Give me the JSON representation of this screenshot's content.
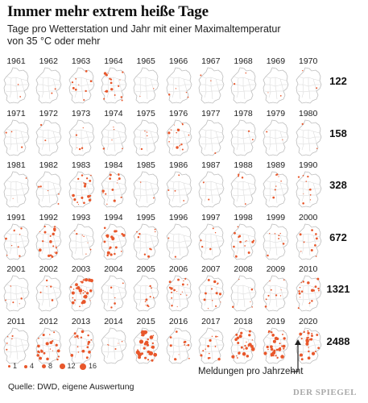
{
  "title": "Immer mehr extrem heiße Tage",
  "subtitle": "Tage pro Wetterstation und Jahr mit einer Maximaltemperatur von 35 °C oder mehr",
  "source": "Quelle: DWD, eigene Auswertung",
  "brand": "DER SPIEGEL",
  "colors": {
    "dot": "#e8572b",
    "map_fill": "#ffffff",
    "map_border": "#bdbdbd"
  },
  "legend": {
    "items": [
      "1",
      "4",
      "8",
      "12",
      "16"
    ]
  },
  "chart_data": {
    "type": "small-multiples-map",
    "annotation": "Meldungen pro Jahrzehnt",
    "legend_values": [
      1,
      4,
      8,
      12,
      16
    ],
    "decades": [
      {
        "years": [
          "1961",
          "1962",
          "1963",
          "1964",
          "1965",
          "1966",
          "1967",
          "1968",
          "1969",
          "1970"
        ],
        "reports": "122",
        "intensity": [
          0.05,
          0.05,
          0.2,
          0.35,
          0.04,
          0.08,
          0.05,
          0.05,
          0.04,
          0.05
        ]
      },
      {
        "years": [
          "1971",
          "1972",
          "1973",
          "1974",
          "1975",
          "1976",
          "1977",
          "1978",
          "1979",
          "1980"
        ],
        "reports": "158",
        "intensity": [
          0.06,
          0.04,
          0.12,
          0.1,
          0.08,
          0.35,
          0.03,
          0.04,
          0.04,
          0.04
        ]
      },
      {
        "years": [
          "1981",
          "1982",
          "1983",
          "1984",
          "1985",
          "1986",
          "1987",
          "1988",
          "1989",
          "1990"
        ],
        "reports": "328",
        "intensity": [
          0.05,
          0.12,
          0.38,
          0.3,
          0.05,
          0.08,
          0.04,
          0.08,
          0.15,
          0.22
        ]
      },
      {
        "years": [
          "1991",
          "1992",
          "1993",
          "1994",
          "1995",
          "1996",
          "1997",
          "1998",
          "1999",
          "2000"
        ],
        "reports": "672",
        "intensity": [
          0.2,
          0.45,
          0.15,
          0.48,
          0.2,
          0.05,
          0.1,
          0.3,
          0.15,
          0.2
        ]
      },
      {
        "years": [
          "2001",
          "2002",
          "2003",
          "2004",
          "2005",
          "2006",
          "2007",
          "2008",
          "2009",
          "2010"
        ],
        "reports": "1321",
        "intensity": [
          0.1,
          0.12,
          0.7,
          0.12,
          0.2,
          0.4,
          0.3,
          0.12,
          0.2,
          0.4
        ]
      },
      {
        "years": [
          "2011",
          "2012",
          "2013",
          "2014",
          "2015",
          "2016",
          "2017",
          "2018",
          "2019",
          "2020"
        ],
        "reports": "2488",
        "intensity": [
          0.12,
          0.5,
          0.42,
          0.12,
          0.75,
          0.3,
          0.3,
          0.65,
          0.7,
          0.55
        ]
      }
    ]
  }
}
